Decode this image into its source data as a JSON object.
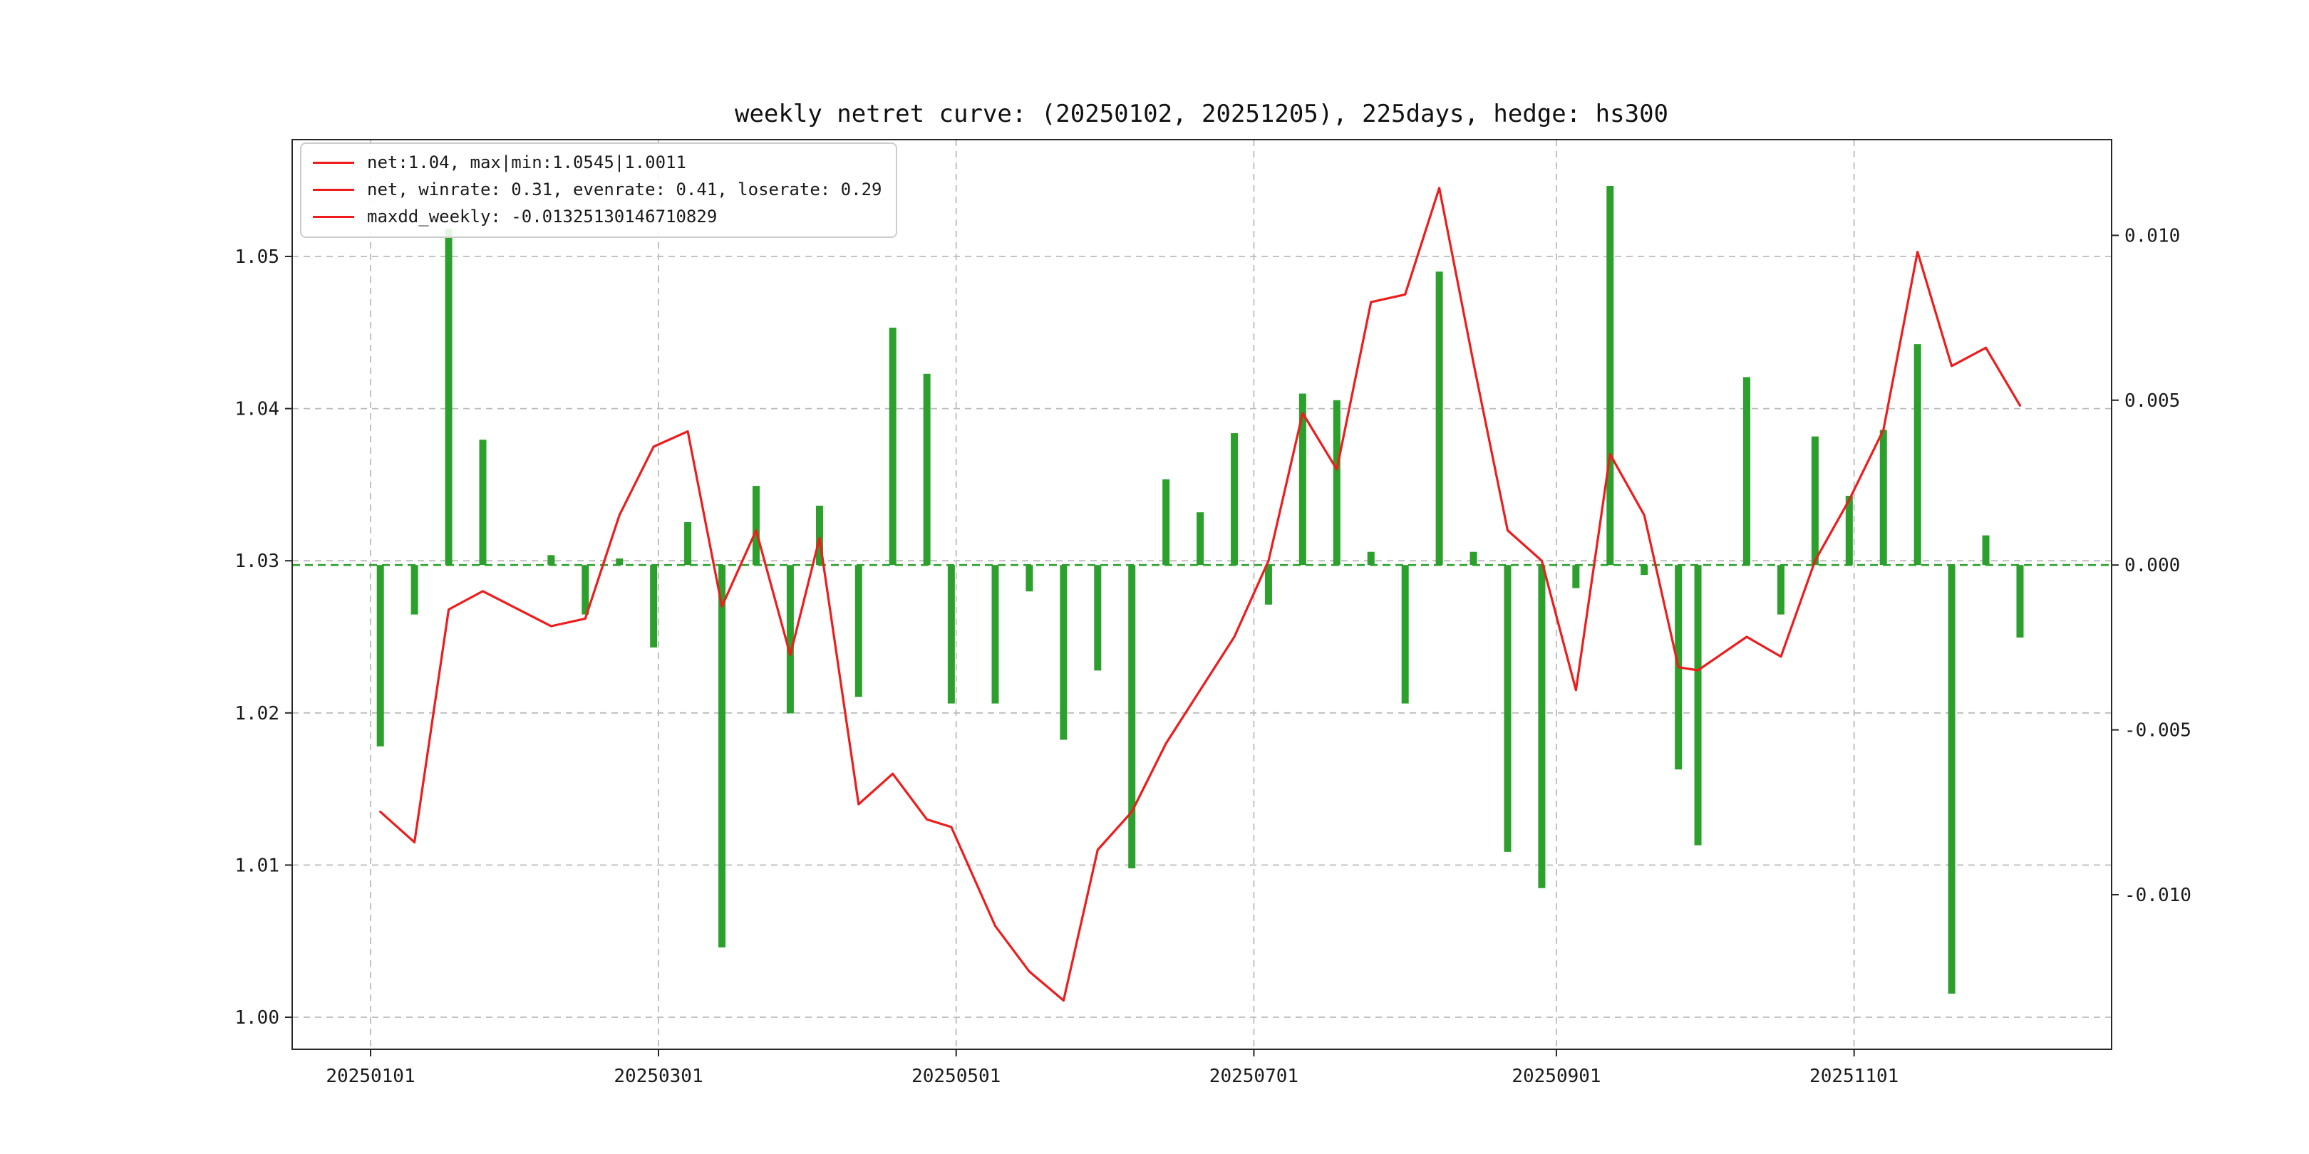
{
  "legend": {
    "marker_color": "#ee1c1c",
    "entries": [
      {
        "label": "net:1.04, max|min:1.0545|1.0011"
      },
      {
        "label": "net, winrate: 0.31, evenrate: 0.41, loserate: 0.29"
      },
      {
        "label": "maxdd_weekly: -0.01325130146710829"
      }
    ]
  },
  "chart_data": {
    "type": "line+bar",
    "title": "weekly netret curve: (20250102, 20251205), 225days, hedge: hs300",
    "x_dates": [
      "20250103",
      "20250110",
      "20250117",
      "20250124",
      "20250207",
      "20250214",
      "20250221",
      "20250228",
      "20250307",
      "20250314",
      "20250321",
      "20250328",
      "20250403",
      "20250411",
      "20250418",
      "20250425",
      "20250430",
      "20250509",
      "20250516",
      "20250523",
      "20250530",
      "20250606",
      "20250613",
      "20250620",
      "20250627",
      "20250704",
      "20250711",
      "20250718",
      "20250725",
      "20250801",
      "20250808",
      "20250815",
      "20250822",
      "20250829",
      "20250905",
      "20250912",
      "20250919",
      "20250926",
      "20250930",
      "20251010",
      "20251017",
      "20251024",
      "20251031",
      "20251107",
      "20251114",
      "20251121",
      "20251128",
      "20251205"
    ],
    "series": [
      {
        "name": "net",
        "type": "line",
        "axis": "left",
        "color": "#ee1c1c",
        "values": [
          1.0135,
          1.0115,
          1.0268,
          1.028,
          1.0257,
          1.0262,
          1.033,
          1.0375,
          1.0385,
          1.027,
          1.032,
          1.0238,
          1.0315,
          1.014,
          1.016,
          1.013,
          1.0125,
          1.006,
          1.003,
          1.0011,
          1.011,
          1.0135,
          1.018,
          1.0215,
          1.025,
          1.03,
          1.0397,
          1.036,
          1.047,
          1.0475,
          1.0545,
          1.043,
          1.032,
          1.03,
          1.0215,
          1.037,
          1.033,
          1.023,
          1.0228,
          1.025,
          1.0237,
          1.03,
          1.034,
          1.0386,
          1.0503,
          1.0428,
          1.044,
          1.0402
        ]
      },
      {
        "name": "weekly_return",
        "type": "bar",
        "axis": "right",
        "color": "#2ca02c",
        "values": [
          -0.0055,
          -0.0015,
          0.0102,
          0.0038,
          0.0003,
          -0.0015,
          0.0002,
          -0.0025,
          0.0013,
          -0.0116,
          0.0024,
          -0.0045,
          0.0018,
          -0.004,
          0.0072,
          0.0058,
          -0.0042,
          -0.0042,
          -0.0008,
          -0.0053,
          -0.0032,
          -0.0092,
          0.0026,
          0.0016,
          0.004,
          -0.0012,
          0.0052,
          0.005,
          0.0004,
          -0.0042,
          0.0089,
          0.0004,
          -0.0087,
          -0.0098,
          -0.0007,
          0.0115,
          -0.0003,
          -0.0062,
          -0.0085,
          0.0057,
          -0.0015,
          0.0039,
          0.0021,
          0.0041,
          0.0067,
          -0.013,
          0.0009,
          -0.0022
        ]
      }
    ],
    "left_axis": {
      "ticks": [
        1.0,
        1.01,
        1.02,
        1.03,
        1.04,
        1.05
      ],
      "range": [
        0.998,
        1.0577
      ]
    },
    "right_axis": {
      "ticks": [
        0.01,
        0.005,
        0.0,
        -0.005,
        -0.01
      ],
      "range": [
        -0.0147,
        0.0129
      ]
    },
    "x_ticks": [
      "20250101",
      "20250301",
      "20250501",
      "20250701",
      "20250901",
      "20251101"
    ],
    "zero_line": {
      "axis": "right",
      "value": 0,
      "color": "#2ca02c",
      "style": "dashed"
    },
    "grid": {
      "on": true,
      "style": "dashed",
      "color": "#bbbbbb"
    },
    "legend_position": "upper left",
    "stats": {
      "net_final": 1.04,
      "net_max": 1.0545,
      "net_min": 1.0011,
      "winrate": 0.31,
      "evenrate": 0.41,
      "loserate": 0.29,
      "maxdd_weekly": -0.01325130146710829,
      "days": 225,
      "hedge": "hs300",
      "start": "20250102",
      "end": "20251205"
    }
  }
}
